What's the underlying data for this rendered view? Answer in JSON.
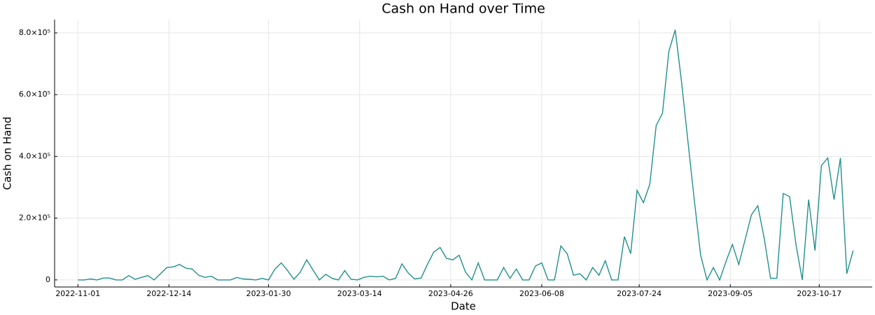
{
  "chart_data": {
    "type": "line",
    "title": "Cash on Hand over Time",
    "x_label": "Date",
    "y_label": "Cash on Hand",
    "x": [
      "2022-11-01",
      "2022-11-04",
      "2022-11-07",
      "2022-11-10",
      "2022-11-13",
      "2022-11-16",
      "2022-11-19",
      "2022-11-22",
      "2022-11-25",
      "2022-11-28",
      "2022-12-01",
      "2022-12-04",
      "2022-12-07",
      "2022-12-10",
      "2022-12-13",
      "2022-12-16",
      "2022-12-19",
      "2022-12-22",
      "2022-12-25",
      "2022-12-28",
      "2022-12-31",
      "2023-01-03",
      "2023-01-06",
      "2023-01-09",
      "2023-01-12",
      "2023-01-15",
      "2023-01-18",
      "2023-01-21",
      "2023-01-24",
      "2023-01-27",
      "2023-01-30",
      "2023-02-02",
      "2023-02-05",
      "2023-02-08",
      "2023-02-11",
      "2023-02-14",
      "2023-02-17",
      "2023-02-20",
      "2023-02-23",
      "2023-02-26",
      "2023-03-01",
      "2023-03-04",
      "2023-03-07",
      "2023-03-10",
      "2023-03-13",
      "2023-03-16",
      "2023-03-19",
      "2023-03-22",
      "2023-03-25",
      "2023-03-28",
      "2023-03-31",
      "2023-04-03",
      "2023-04-06",
      "2023-04-09",
      "2023-04-12",
      "2023-04-15",
      "2023-04-18",
      "2023-04-21",
      "2023-04-24",
      "2023-04-27",
      "2023-04-30",
      "2023-05-03",
      "2023-05-06",
      "2023-05-09",
      "2023-05-12",
      "2023-05-15",
      "2023-05-18",
      "2023-05-21",
      "2023-05-24",
      "2023-05-27",
      "2023-05-30",
      "2023-06-02",
      "2023-06-05",
      "2023-06-08",
      "2023-06-11",
      "2023-06-14",
      "2023-06-17",
      "2023-06-20",
      "2023-06-23",
      "2023-06-26",
      "2023-06-29",
      "2023-07-02",
      "2023-07-05",
      "2023-07-08",
      "2023-07-11",
      "2023-07-14",
      "2023-07-17",
      "2023-07-20",
      "2023-07-23",
      "2023-07-26",
      "2023-07-29",
      "2023-08-01",
      "2023-08-04",
      "2023-08-07",
      "2023-08-10",
      "2023-08-13",
      "2023-08-16",
      "2023-08-19",
      "2023-08-22",
      "2023-08-25",
      "2023-08-28",
      "2023-08-31",
      "2023-09-03",
      "2023-09-06",
      "2023-09-09",
      "2023-09-12",
      "2023-09-15",
      "2023-09-18",
      "2023-09-21",
      "2023-09-24",
      "2023-09-27",
      "2023-09-30",
      "2023-10-03",
      "2023-10-06",
      "2023-10-09",
      "2023-10-12",
      "2023-10-15",
      "2023-10-18",
      "2023-10-21",
      "2023-10-24",
      "2023-10-27",
      "2023-10-30",
      "2023-11-02"
    ],
    "series": [
      {
        "name": "Cash on Hand",
        "color": "#21908c",
        "values": [
          0,
          0,
          3000,
          0,
          6000,
          6000,
          0,
          0,
          14000,
          2000,
          8000,
          14000,
          0,
          20000,
          40000,
          42000,
          50000,
          38000,
          35000,
          15000,
          8000,
          12000,
          0,
          0,
          0,
          8000,
          3000,
          2000,
          0,
          5000,
          0,
          35000,
          55000,
          30000,
          2000,
          25000,
          65000,
          32000,
          0,
          18000,
          5000,
          0,
          30000,
          2000,
          0,
          8000,
          12000,
          10000,
          12000,
          0,
          5000,
          52000,
          22000,
          3000,
          6000,
          50000,
          90000,
          105000,
          70000,
          65000,
          80000,
          25000,
          0,
          55000,
          0,
          0,
          0,
          40000,
          5000,
          35000,
          0,
          0,
          45000,
          55000,
          0,
          0,
          110000,
          85000,
          15000,
          20000,
          0,
          40000,
          15000,
          62000,
          0,
          0,
          140000,
          85000,
          290000,
          250000,
          310000,
          500000,
          540000,
          740000,
          810000,
          640000,
          450000,
          260000,
          80000,
          0,
          40000,
          0,
          60000,
          115000,
          50000,
          130000,
          211000,
          240000,
          135000,
          5000,
          5000,
          280000,
          270000,
          115000,
          0,
          260000,
          95000,
          370000,
          395000,
          260000,
          395000,
          20000,
          95000
        ]
      }
    ],
    "xlim": [
      "2022-10-21",
      "2023-11-11"
    ],
    "xticks": [
      "2022-11-01",
      "2022-12-14",
      "2023-01-30",
      "2023-03-14",
      "2023-04-26",
      "2023-06-08",
      "2023-07-24",
      "2023-09-05",
      "2023-10-17"
    ],
    "ylim": [
      -23000,
      843000
    ],
    "yticks": [
      0,
      {
        "value": 200000,
        "label": "2.0×10⁵"
      },
      {
        "value": 400000,
        "label": "4.0×10⁵"
      },
      {
        "value": 600000,
        "label": "6.0×10⁵"
      },
      {
        "value": 800000,
        "label": "8.0×10⁵"
      }
    ],
    "grid": true
  }
}
